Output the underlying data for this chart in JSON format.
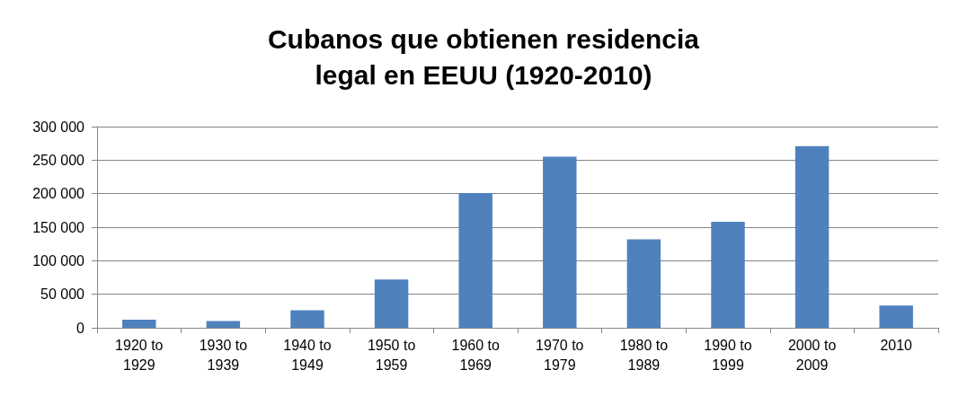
{
  "chart_data": {
    "type": "bar",
    "title": "Cubanos que obtienen residencia\nlegal en EEUU (1920-2010)",
    "categories": [
      "1920 to\n1929",
      "1930 to\n1939",
      "1940 to\n1949",
      "1950 to\n1959",
      "1960 to\n1969",
      "1970 to\n1979",
      "1980 to\n1989",
      "1990 to\n1999",
      "2000 to\n2009",
      "2010"
    ],
    "values": [
      12000,
      10000,
      26000,
      72000,
      201000,
      255000,
      132000,
      158000,
      271000,
      33000
    ],
    "color": "#4f81bd",
    "ylim": [
      0,
      300000
    ],
    "yticks": [
      {
        "value": 0,
        "label": "0"
      },
      {
        "value": 50000,
        "label": "50 000"
      },
      {
        "value": 100000,
        "label": "100 000"
      },
      {
        "value": 150000,
        "label": "150 000"
      },
      {
        "value": 200000,
        "label": "200 000"
      },
      {
        "value": 250000,
        "label": "250 000"
      },
      {
        "value": 300000,
        "label": "300 000"
      }
    ],
    "grid": "y"
  }
}
